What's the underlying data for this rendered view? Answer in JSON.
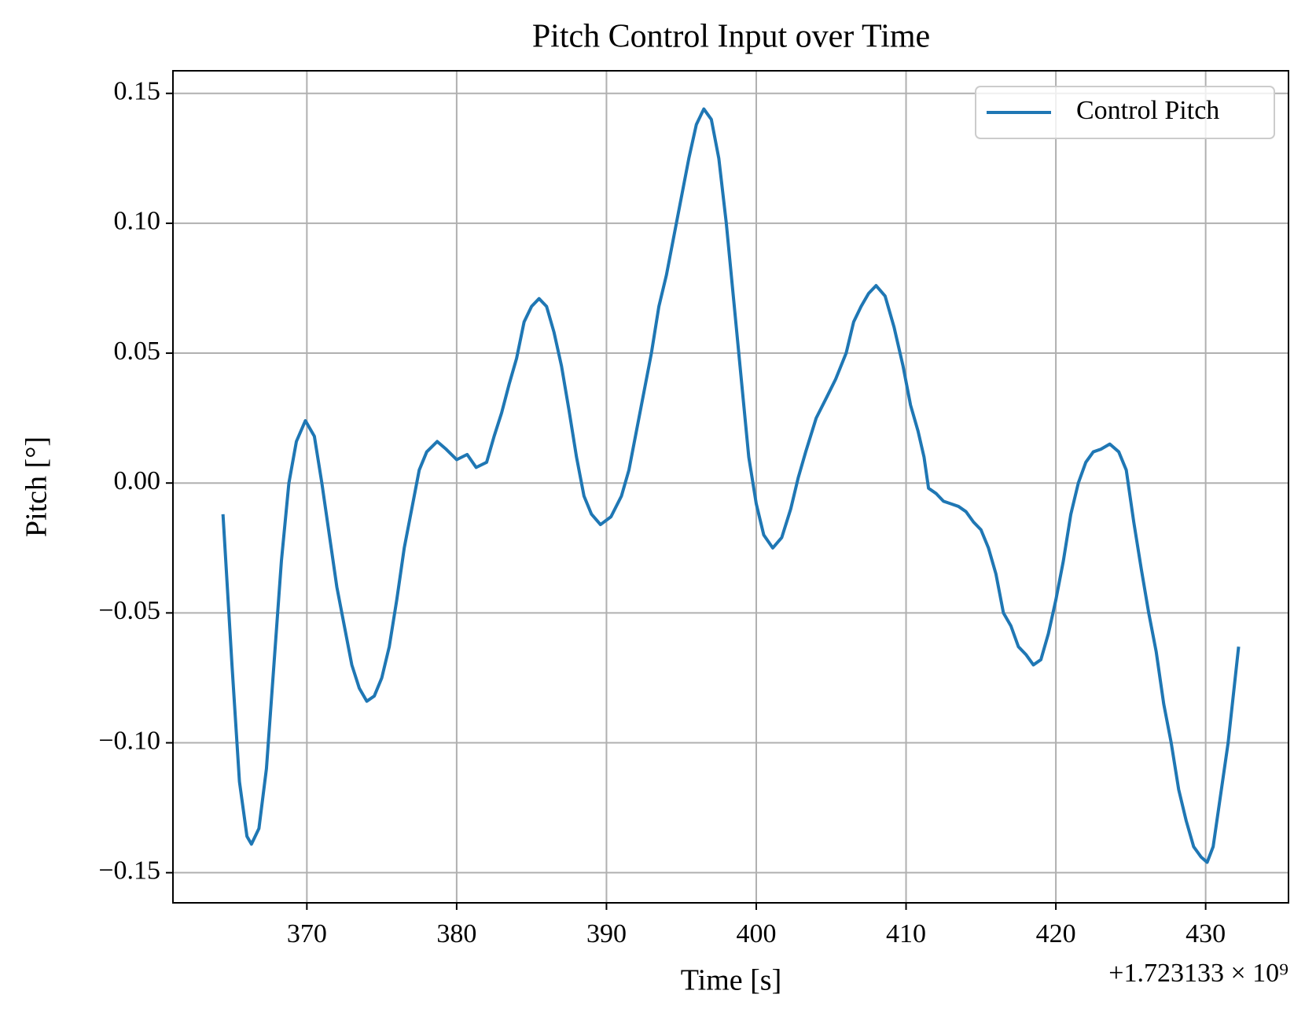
{
  "chart_data": {
    "type": "line",
    "title": "Pitch Control Input over Time",
    "x_label": "Time [s]",
    "y_label": "Pitch [°]",
    "x_offset_text": "+1.723133 × 10⁹",
    "x": [
      364.4,
      365.0,
      365.5,
      366.0,
      366.3,
      366.8,
      367.3,
      367.8,
      368.3,
      368.8,
      369.3,
      369.9,
      370.5,
      371.0,
      371.5,
      372.0,
      372.5,
      373.0,
      373.5,
      374.0,
      374.5,
      375.0,
      375.5,
      376.0,
      376.5,
      377.0,
      377.5,
      378.0,
      378.7,
      379.3,
      380.0,
      380.7,
      381.3,
      382.0,
      382.5,
      383.0,
      383.5,
      384.0,
      384.5,
      385.0,
      385.5,
      386.0,
      386.5,
      387.0,
      387.5,
      388.0,
      388.5,
      389.0,
      389.6,
      390.3,
      391.0,
      391.5,
      392.0,
      392.5,
      393.0,
      393.5,
      394.0,
      394.5,
      395.0,
      395.5,
      396.0,
      396.5,
      397.0,
      397.5,
      398.0,
      398.5,
      399.0,
      399.5,
      400.0,
      400.5,
      401.1,
      401.7,
      402.3,
      402.8,
      403.3,
      404.0,
      404.7,
      405.3,
      406.0,
      406.5,
      407.0,
      407.5,
      408.0,
      408.6,
      409.2,
      409.8,
      410.3,
      410.8,
      411.2,
      411.5,
      412.0,
      412.5,
      413.0,
      413.5,
      414.0,
      414.5,
      415.0,
      415.5,
      416.0,
      416.5,
      417.0,
      417.5,
      418.0,
      418.5,
      419.0,
      419.5,
      420.0,
      420.5,
      421.0,
      421.5,
      422.0,
      422.5,
      423.0,
      423.6,
      424.2,
      424.7,
      425.2,
      425.7,
      426.2,
      426.7,
      427.2,
      427.7,
      428.2,
      428.7,
      429.2,
      429.7,
      430.1,
      430.5,
      431.0,
      431.5,
      432.2
    ],
    "series": [
      {
        "name": "Control Pitch",
        "color": "#1f77b4",
        "values": [
          -0.012,
          -0.07,
          -0.115,
          -0.136,
          -0.139,
          -0.133,
          -0.11,
          -0.07,
          -0.03,
          0.0,
          0.016,
          0.024,
          0.018,
          0.0,
          -0.02,
          -0.04,
          -0.055,
          -0.07,
          -0.079,
          -0.084,
          -0.082,
          -0.075,
          -0.063,
          -0.045,
          -0.025,
          -0.01,
          0.005,
          0.012,
          0.016,
          0.013,
          0.009,
          0.011,
          0.006,
          0.008,
          0.018,
          0.027,
          0.038,
          0.048,
          0.062,
          0.068,
          0.071,
          0.068,
          0.058,
          0.045,
          0.028,
          0.01,
          -0.005,
          -0.012,
          -0.016,
          -0.013,
          -0.005,
          0.005,
          0.02,
          0.035,
          0.05,
          0.068,
          0.08,
          0.095,
          0.11,
          0.125,
          0.138,
          0.144,
          0.14,
          0.125,
          0.1,
          0.07,
          0.04,
          0.01,
          -0.008,
          -0.02,
          -0.025,
          -0.021,
          -0.01,
          0.002,
          0.012,
          0.025,
          0.033,
          0.04,
          0.05,
          0.062,
          0.068,
          0.073,
          0.076,
          0.072,
          0.06,
          0.045,
          0.03,
          0.02,
          0.01,
          -0.002,
          -0.004,
          -0.007,
          -0.008,
          -0.009,
          -0.011,
          -0.015,
          -0.018,
          -0.025,
          -0.035,
          -0.05,
          -0.055,
          -0.063,
          -0.066,
          -0.07,
          -0.068,
          -0.058,
          -0.045,
          -0.03,
          -0.012,
          0.0,
          0.008,
          0.012,
          0.013,
          0.015,
          0.012,
          0.005,
          -0.015,
          -0.033,
          -0.05,
          -0.065,
          -0.085,
          -0.1,
          -0.118,
          -0.13,
          -0.14,
          -0.144,
          -0.146,
          -0.14,
          -0.12,
          -0.1,
          -0.063
        ]
      }
    ],
    "xlim": [
      361.06,
      435.53
    ],
    "xticks": [
      370,
      380,
      390,
      400,
      410,
      420,
      430
    ],
    "ylim": [
      -0.1616,
      0.1587
    ],
    "yticks": [
      {
        "value": -0.15,
        "label": "−0.15"
      },
      {
        "value": -0.1,
        "label": "−0.10"
      },
      {
        "value": -0.05,
        "label": "−0.05"
      },
      {
        "value": 0,
        "label": "0.00"
      },
      0.05,
      {
        "value": 0.1,
        "label": "0.10"
      },
      0.15
    ],
    "grid": true,
    "legend": "upper right"
  }
}
